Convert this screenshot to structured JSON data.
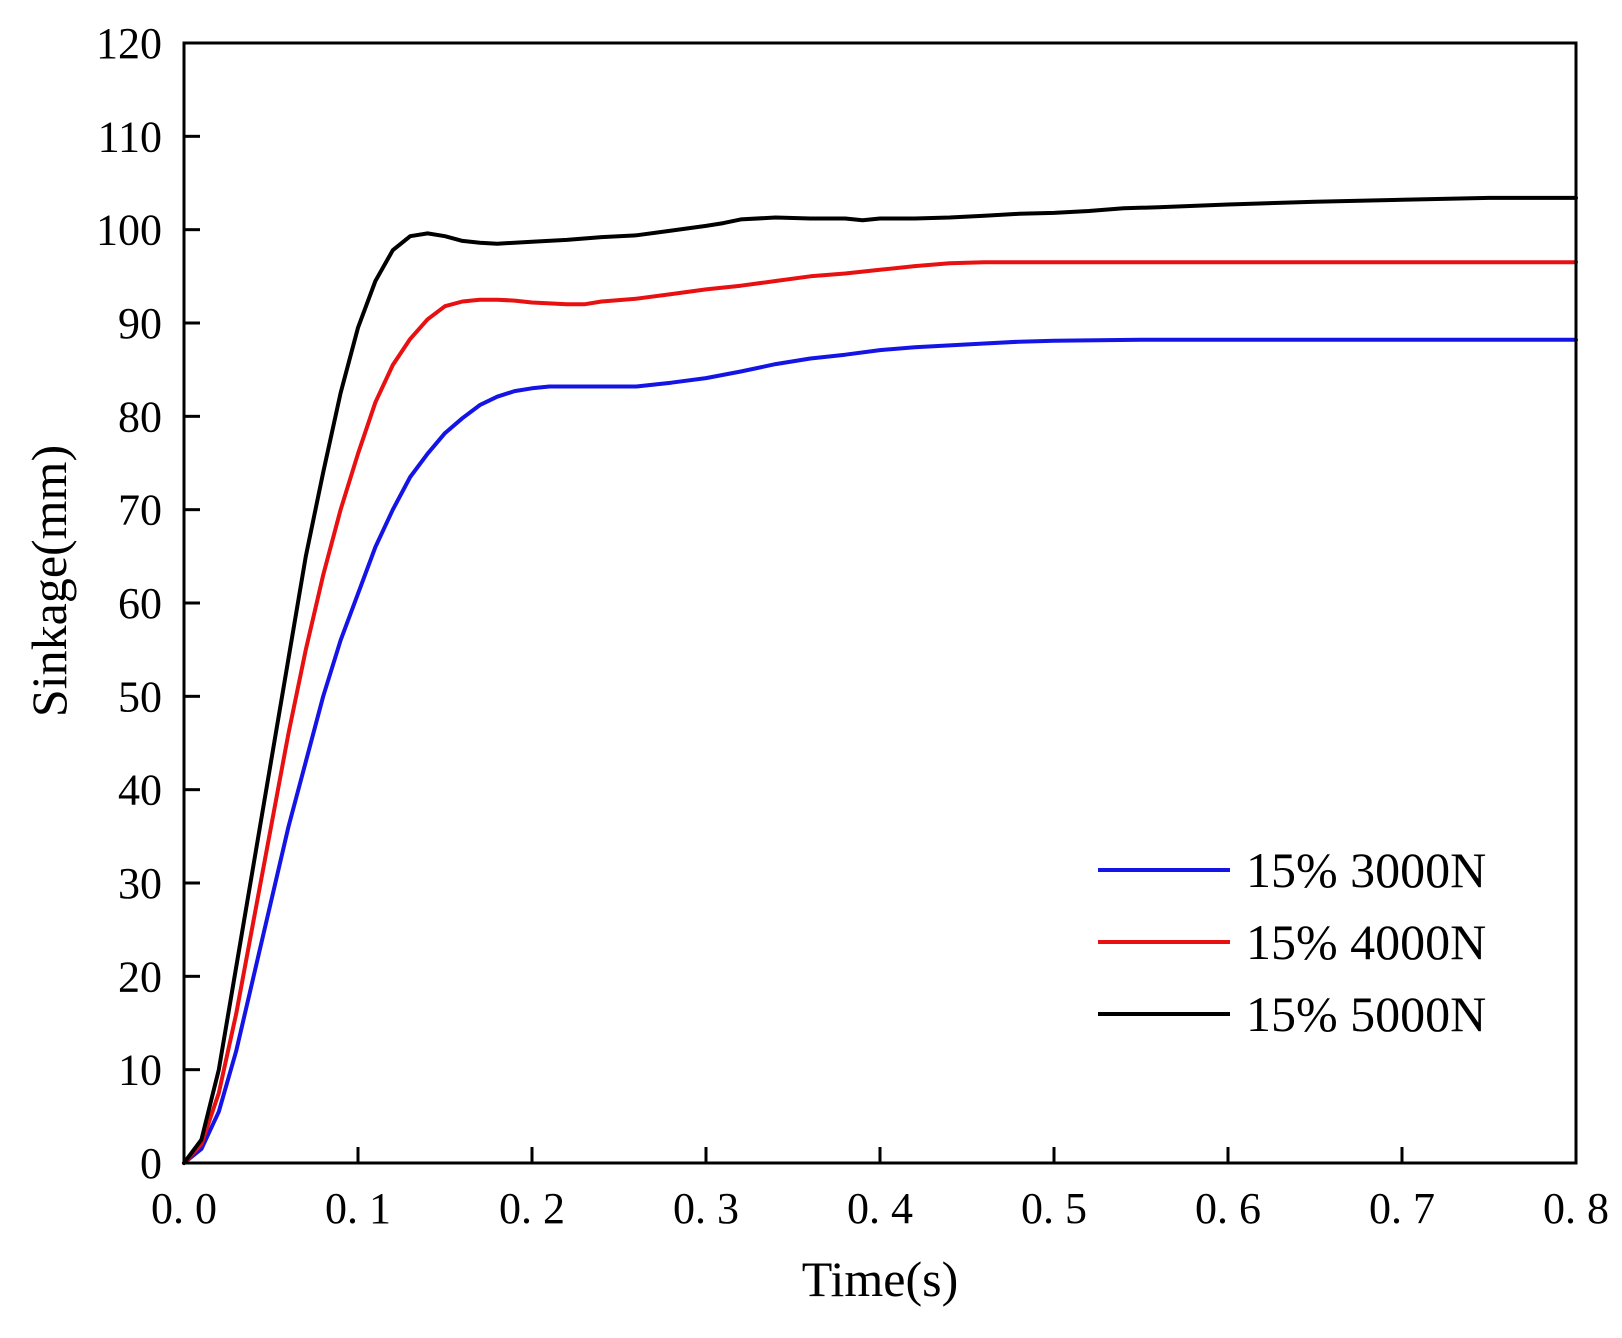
{
  "chart_data": {
    "type": "line",
    "title": "",
    "xlabel": "Time(s)",
    "ylabel": "Sinkage(mm)",
    "xlim": [
      0.0,
      0.8
    ],
    "ylim": [
      0,
      120
    ],
    "x_ticks": [
      0.0,
      0.1,
      0.2,
      0.3,
      0.4,
      0.5,
      0.6,
      0.7,
      0.8
    ],
    "x_tick_labels": [
      "0. 0",
      "0. 1",
      "0. 2",
      "0. 3",
      "0. 4",
      "0. 5",
      "0. 6",
      "0. 7",
      "0. 8"
    ],
    "y_ticks": [
      0,
      10,
      20,
      30,
      40,
      50,
      60,
      70,
      80,
      90,
      100,
      110,
      120
    ],
    "y_tick_labels": [
      "0",
      "10",
      "20",
      "30",
      "40",
      "50",
      "60",
      "70",
      "80",
      "90",
      "100",
      "110",
      "120"
    ],
    "grid": false,
    "legend_position": "bottom-right",
    "series": [
      {
        "name": "15% 3000N",
        "color": "#1414e6",
        "x": [
          0.0,
          0.01,
          0.02,
          0.03,
          0.04,
          0.05,
          0.06,
          0.07,
          0.08,
          0.09,
          0.1,
          0.11,
          0.12,
          0.13,
          0.14,
          0.15,
          0.16,
          0.17,
          0.18,
          0.19,
          0.2,
          0.21,
          0.22,
          0.24,
          0.26,
          0.28,
          0.3,
          0.32,
          0.34,
          0.36,
          0.38,
          0.4,
          0.42,
          0.44,
          0.46,
          0.48,
          0.5,
          0.55,
          0.6,
          0.7,
          0.8
        ],
        "y": [
          0.0,
          1.5,
          5.5,
          12,
          20,
          28,
          36,
          43,
          50,
          56,
          61,
          66,
          70,
          73.5,
          76,
          78.2,
          79.8,
          81.2,
          82.1,
          82.7,
          83.0,
          83.2,
          83.2,
          83.2,
          83.2,
          83.6,
          84.1,
          84.8,
          85.6,
          86.2,
          86.6,
          87.1,
          87.4,
          87.6,
          87.8,
          88.0,
          88.1,
          88.2,
          88.2,
          88.2,
          88.2
        ]
      },
      {
        "name": "15% 4000N",
        "color": "#e81010",
        "x": [
          0.0,
          0.01,
          0.02,
          0.03,
          0.04,
          0.05,
          0.06,
          0.07,
          0.08,
          0.09,
          0.1,
          0.11,
          0.12,
          0.13,
          0.14,
          0.15,
          0.16,
          0.17,
          0.18,
          0.19,
          0.2,
          0.21,
          0.22,
          0.23,
          0.24,
          0.26,
          0.28,
          0.3,
          0.32,
          0.34,
          0.36,
          0.38,
          0.4,
          0.42,
          0.44,
          0.46,
          0.5,
          0.55,
          0.6,
          0.7,
          0.8
        ],
        "y": [
          0.0,
          2.0,
          7.5,
          16,
          26,
          36,
          46,
          55,
          63,
          70,
          76,
          81.5,
          85.5,
          88.3,
          90.4,
          91.8,
          92.3,
          92.5,
          92.5,
          92.4,
          92.2,
          92.1,
          92.0,
          92.0,
          92.3,
          92.6,
          93.1,
          93.6,
          94.0,
          94.5,
          95.0,
          95.3,
          95.7,
          96.1,
          96.4,
          96.5,
          96.5,
          96.5,
          96.5,
          96.5,
          96.5
        ]
      },
      {
        "name": "15% 5000N",
        "color": "#000000",
        "x": [
          0.0,
          0.01,
          0.02,
          0.03,
          0.04,
          0.05,
          0.06,
          0.07,
          0.08,
          0.09,
          0.1,
          0.11,
          0.12,
          0.13,
          0.14,
          0.15,
          0.16,
          0.17,
          0.18,
          0.19,
          0.2,
          0.22,
          0.24,
          0.26,
          0.28,
          0.3,
          0.31,
          0.32,
          0.34,
          0.36,
          0.38,
          0.39,
          0.4,
          0.42,
          0.44,
          0.46,
          0.48,
          0.5,
          0.52,
          0.54,
          0.56,
          0.6,
          0.65,
          0.7,
          0.75,
          0.8
        ],
        "y": [
          0.0,
          2.5,
          10,
          21,
          32,
          43,
          54,
          65,
          74,
          82.5,
          89.5,
          94.5,
          97.8,
          99.3,
          99.6,
          99.3,
          98.8,
          98.6,
          98.5,
          98.6,
          98.7,
          98.9,
          99.2,
          99.4,
          99.9,
          100.4,
          100.7,
          101.1,
          101.3,
          101.2,
          101.2,
          101.0,
          101.2,
          101.2,
          101.3,
          101.5,
          101.7,
          101.8,
          102.0,
          102.3,
          102.4,
          102.7,
          103.0,
          103.2,
          103.4,
          103.4
        ]
      }
    ]
  }
}
